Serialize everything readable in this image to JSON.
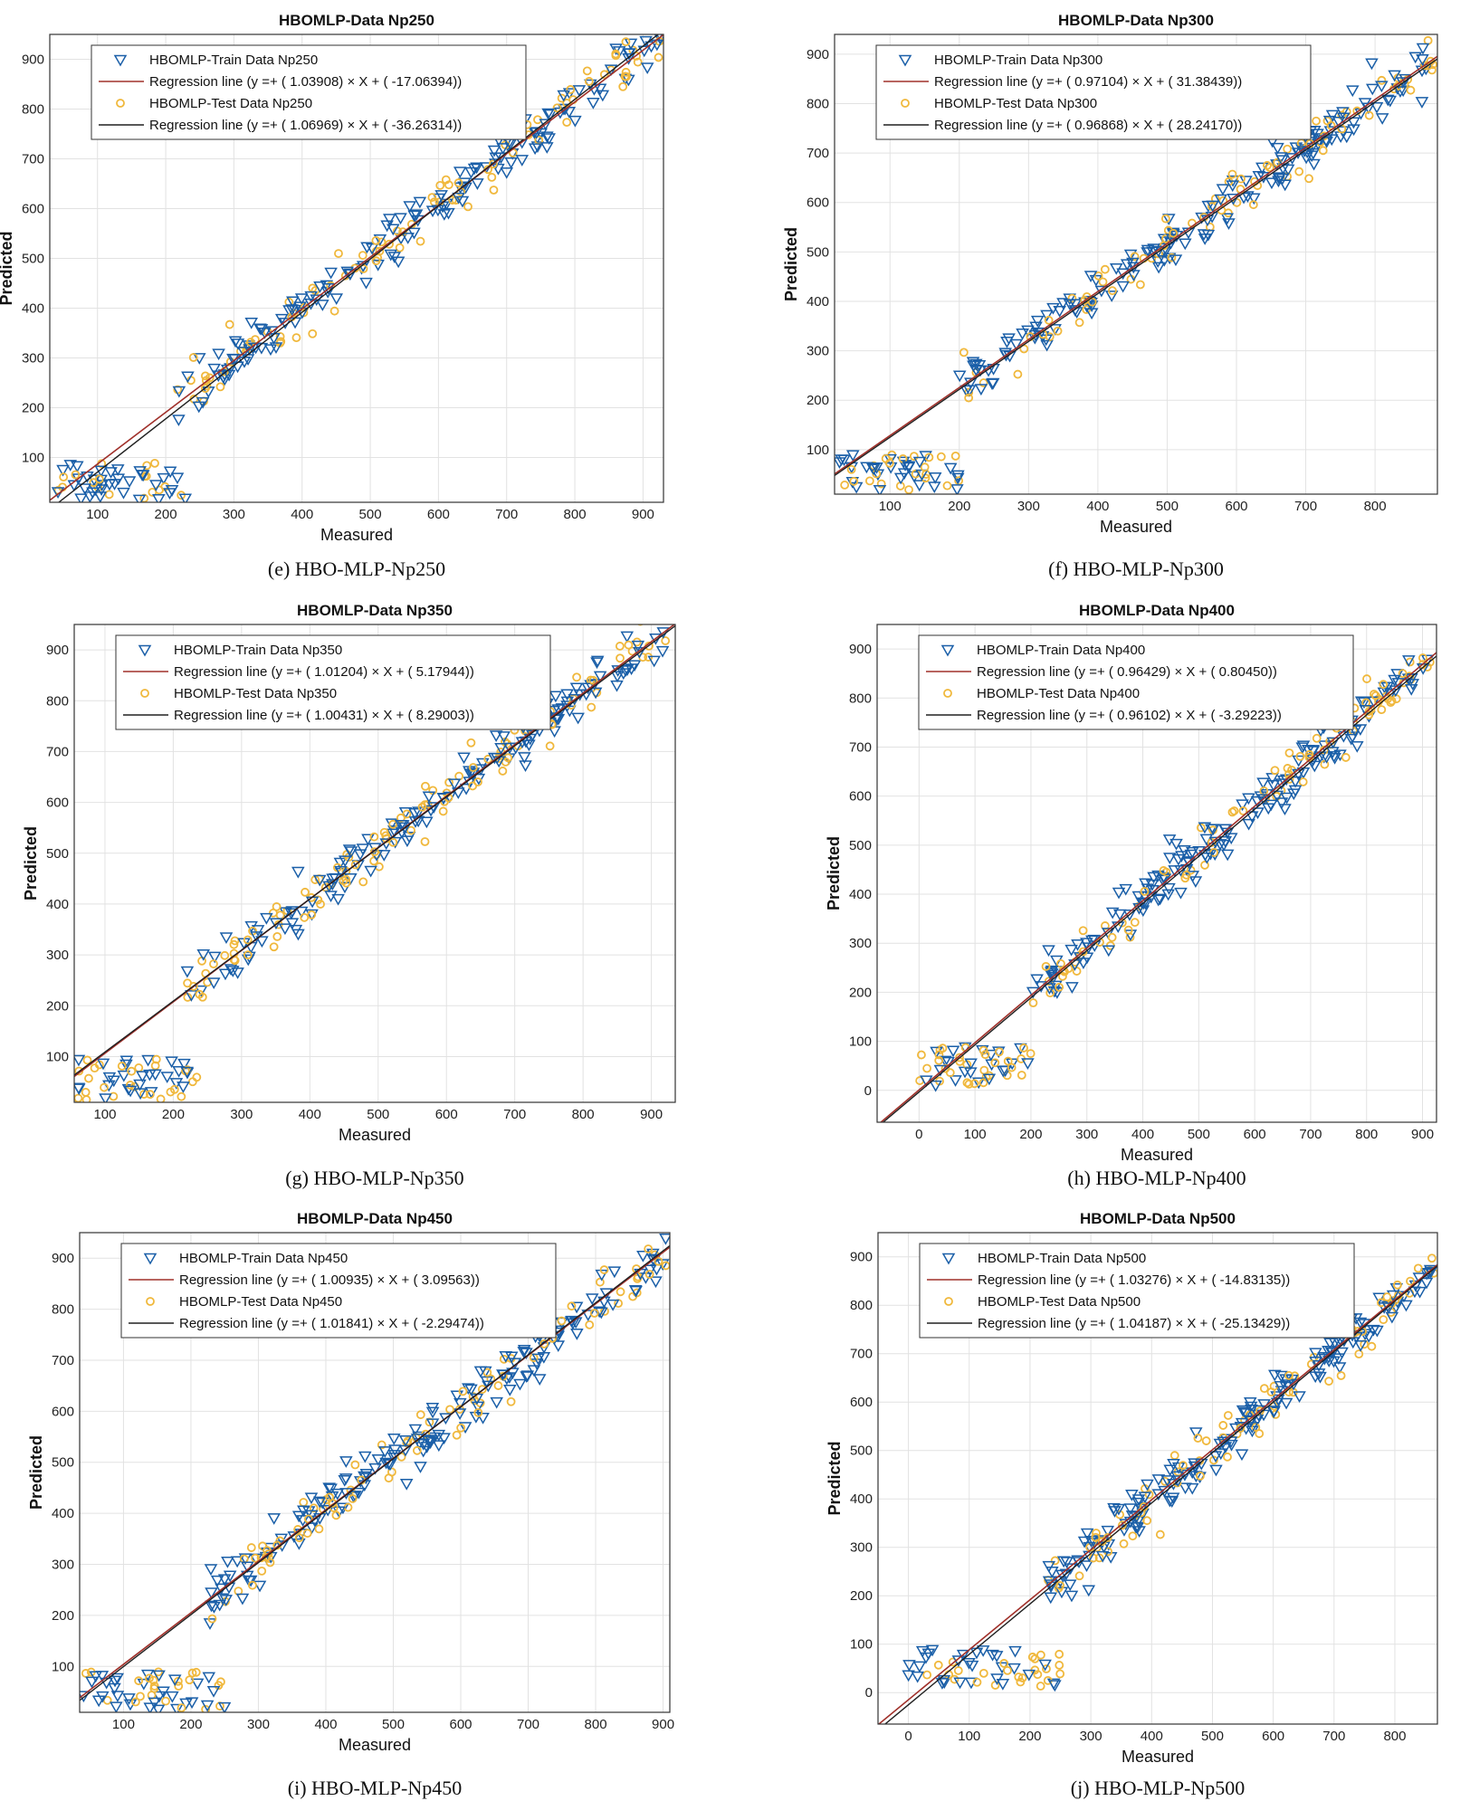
{
  "figure": {
    "background": "#ffffff",
    "train_color": "#1a5fa8",
    "test_color": "#f0b83c",
    "train_line_color": "#a0302a",
    "test_line_color": "#202020",
    "grid_color": "#e2e2e2"
  },
  "chart_data": [
    {
      "type": "scatter",
      "title": "HBOMLP-Data Np250",
      "xlabel": "Measured",
      "ylabel": "Predicted",
      "xlim": [
        30,
        930
      ],
      "ylim": [
        10,
        950
      ],
      "xticks": [
        100,
        200,
        300,
        400,
        500,
        600,
        700,
        800,
        900
      ],
      "yticks": [
        100,
        200,
        300,
        400,
        500,
        600,
        700,
        800,
        900
      ],
      "grid": true,
      "legend_position": "top-left",
      "caption": "(e) HBO-MLP-Np250",
      "series": [
        {
          "name": "HBOMLP-Train Data Np250",
          "kind": "scatter",
          "marker": "triangle-down"
        },
        {
          "name": "Regression line (y =+ ( 1.03908) × X + ( -17.06394))",
          "kind": "line",
          "slope": 1.03908,
          "intercept": -17.06394
        },
        {
          "name": "HBOMLP-Test Data Np250",
          "kind": "scatter",
          "marker": "circle"
        },
        {
          "name": "Regression line (y =+ ( 1.06969) × X + ( -36.26314))",
          "kind": "line",
          "slope": 1.06969,
          "intercept": -36.26314
        }
      ],
      "low_cluster": {
        "x_range": [
          35,
          230
        ],
        "y_range": [
          15,
          90
        ]
      }
    },
    {
      "type": "scatter",
      "title": "HBOMLP-Data Np300",
      "xlabel": "Measured",
      "ylabel": "Predicted",
      "xlim": [
        20,
        890
      ],
      "ylim": [
        10,
        940
      ],
      "xticks": [
        100,
        200,
        300,
        400,
        500,
        600,
        700,
        800
      ],
      "yticks": [
        100,
        200,
        300,
        400,
        500,
        600,
        700,
        800,
        900
      ],
      "grid": true,
      "legend_position": "top-left",
      "caption": "(f) HBO-MLP-Np300",
      "series": [
        {
          "name": "HBOMLP-Train Data Np300",
          "kind": "scatter",
          "marker": "triangle-down"
        },
        {
          "name": "Regression line (y =+ ( 0.97104) × X + ( 31.38439))",
          "kind": "line",
          "slope": 0.97104,
          "intercept": 31.38439
        },
        {
          "name": "HBOMLP-Test Data Np300",
          "kind": "scatter",
          "marker": "circle"
        },
        {
          "name": "Regression line (y =+ ( 0.96868) × X + ( 28.24170))",
          "kind": "line",
          "slope": 0.96868,
          "intercept": 28.2417
        }
      ],
      "low_cluster": {
        "x_range": [
          25,
          200
        ],
        "y_range": [
          15,
          90
        ]
      }
    },
    {
      "type": "scatter",
      "title": "HBOMLP-Data Np350",
      "xlabel": "Measured",
      "ylabel": "Predicted",
      "xlim": [
        55,
        935
      ],
      "ylim": [
        10,
        950
      ],
      "xticks": [
        100,
        200,
        300,
        400,
        500,
        600,
        700,
        800,
        900
      ],
      "yticks": [
        100,
        200,
        300,
        400,
        500,
        600,
        700,
        800,
        900
      ],
      "grid": true,
      "legend_position": "top-left",
      "caption": "(g) HBO-MLP-Np350",
      "series": [
        {
          "name": "HBOMLP-Train Data Np350",
          "kind": "scatter",
          "marker": "triangle-down"
        },
        {
          "name": "Regression line (y =+ ( 1.01204) × X + ( 5.17944))",
          "kind": "line",
          "slope": 1.01204,
          "intercept": 5.17944
        },
        {
          "name": "HBOMLP-Test Data Np350",
          "kind": "scatter",
          "marker": "circle"
        },
        {
          "name": "Regression line (y =+ ( 1.00431) × X + ( 8.29003))",
          "kind": "line",
          "slope": 1.00431,
          "intercept": 8.29003
        }
      ],
      "low_cluster": {
        "x_range": [
          60,
          235
        ],
        "y_range": [
          15,
          95
        ]
      }
    },
    {
      "type": "scatter",
      "title": "HBOMLP-Data Np400",
      "xlabel": "Measured",
      "ylabel": "Predicted",
      "xlim": [
        -75,
        925
      ],
      "ylim": [
        -65,
        950
      ],
      "xticks": [
        0,
        100,
        200,
        300,
        400,
        500,
        600,
        700,
        800,
        900
      ],
      "yticks": [
        0,
        100,
        200,
        300,
        400,
        500,
        600,
        700,
        800,
        900
      ],
      "grid": true,
      "legend_position": "top-left",
      "caption": "(h) HBO-MLP-Np400",
      "series": [
        {
          "name": "HBOMLP-Train Data Np400",
          "kind": "scatter",
          "marker": "triangle-down"
        },
        {
          "name": "Regression line (y =+ ( 0.96429) × X + ( 0.80450))",
          "kind": "line",
          "slope": 0.96429,
          "intercept": 0.8045
        },
        {
          "name": "HBOMLP-Test Data Np400",
          "kind": "scatter",
          "marker": "circle"
        },
        {
          "name": "Regression line (y =+ ( 0.96102) × X + ( -3.29223))",
          "kind": "line",
          "slope": 0.96102,
          "intercept": -3.29223
        }
      ],
      "low_cluster": {
        "x_range": [
          -10,
          200
        ],
        "y_range": [
          10,
          90
        ]
      }
    },
    {
      "type": "scatter",
      "title": "HBOMLP-Data Np450",
      "xlabel": "Measured",
      "ylabel": "Predicted",
      "xlim": [
        35,
        910
      ],
      "ylim": [
        10,
        950
      ],
      "xticks": [
        100,
        200,
        300,
        400,
        500,
        600,
        700,
        800,
        900
      ],
      "yticks": [
        100,
        200,
        300,
        400,
        500,
        600,
        700,
        800,
        900
      ],
      "grid": true,
      "legend_position": "top-left",
      "caption": "(i) HBO-MLP-Np450",
      "series": [
        {
          "name": "HBOMLP-Train Data Np450",
          "kind": "scatter",
          "marker": "triangle-down"
        },
        {
          "name": "Regression line (y =+ ( 1.00935) × X + ( 3.09563))",
          "kind": "line",
          "slope": 1.00935,
          "intercept": 3.09563
        },
        {
          "name": "HBOMLP-Test Data Np450",
          "kind": "scatter",
          "marker": "circle"
        },
        {
          "name": "Regression line (y =+ ( 1.01841) × X + ( -2.29474))",
          "kind": "line",
          "slope": 1.01841,
          "intercept": -2.29474
        }
      ],
      "low_cluster": {
        "x_range": [
          40,
          250
        ],
        "y_range": [
          15,
          90
        ]
      }
    },
    {
      "type": "scatter",
      "title": "HBOMLP-Data Np500",
      "xlabel": "Measured",
      "ylabel": "Predicted",
      "xlim": [
        -50,
        870
      ],
      "ylim": [
        -65,
        950
      ],
      "xticks": [
        0,
        100,
        200,
        300,
        400,
        500,
        600,
        700,
        800
      ],
      "yticks": [
        0,
        100,
        200,
        300,
        400,
        500,
        600,
        700,
        800,
        900
      ],
      "grid": true,
      "legend_position": "top-left",
      "caption": "(j) HBO-MLP-Np500",
      "series": [
        {
          "name": "HBOMLP-Train Data Np500",
          "kind": "scatter",
          "marker": "triangle-down"
        },
        {
          "name": "Regression line (y =+ ( 1.03276) × X + ( -14.83135))",
          "kind": "line",
          "slope": 1.03276,
          "intercept": -14.83135
        },
        {
          "name": "HBOMLP-Test Data Np500",
          "kind": "scatter",
          "marker": "circle"
        },
        {
          "name": "Regression line (y =+ ( 1.04187) × X + ( -25.13429))",
          "kind": "line",
          "slope": 1.04187,
          "intercept": -25.13429
        }
      ],
      "low_cluster": {
        "x_range": [
          0,
          250
        ],
        "y_range": [
          10,
          90
        ]
      }
    }
  ]
}
